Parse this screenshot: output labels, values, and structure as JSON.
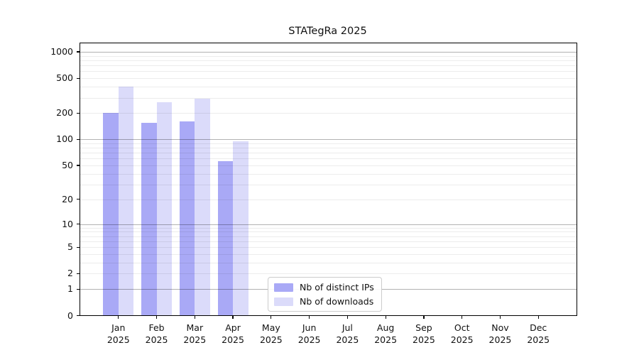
{
  "chart_data": {
    "type": "bar",
    "title": "STATegRa 2025",
    "categories": [
      "Jan",
      "Feb",
      "Mar",
      "Apr",
      "May",
      "Jun",
      "Jul",
      "Aug",
      "Sep",
      "Oct",
      "Nov",
      "Dec"
    ],
    "category_year": "2025",
    "series": [
      {
        "name": "Nb of distinct IPs",
        "color": "#a9a9f6",
        "values": [
          200,
          155,
          160,
          56,
          0,
          0,
          0,
          0,
          0,
          0,
          0,
          0
        ]
      },
      {
        "name": "Nb of downloads",
        "color": "#dbdbfa",
        "values": [
          400,
          265,
          290,
          95,
          0,
          0,
          0,
          0,
          0,
          0,
          0,
          0
        ]
      }
    ],
    "yscale": "log1p",
    "ylim": [
      0,
      1250
    ],
    "yticks": [
      0,
      1,
      2,
      5,
      10,
      20,
      50,
      100,
      200,
      500,
      1000
    ],
    "grid_major_values": [
      1,
      10,
      100,
      1000
    ],
    "grid_minor_values": [
      2,
      3,
      4,
      5,
      6,
      7,
      8,
      9,
      20,
      30,
      40,
      50,
      60,
      70,
      80,
      90,
      200,
      300,
      400,
      500,
      600,
      700,
      800,
      900
    ],
    "grid": "horizontal",
    "legend_position": "inside-bottom-center",
    "colors": {
      "axis": "#000000",
      "text": "#111111",
      "grid_minor": "#ededed",
      "grid_major": "#b2b2b2",
      "background": "#ffffff"
    }
  }
}
